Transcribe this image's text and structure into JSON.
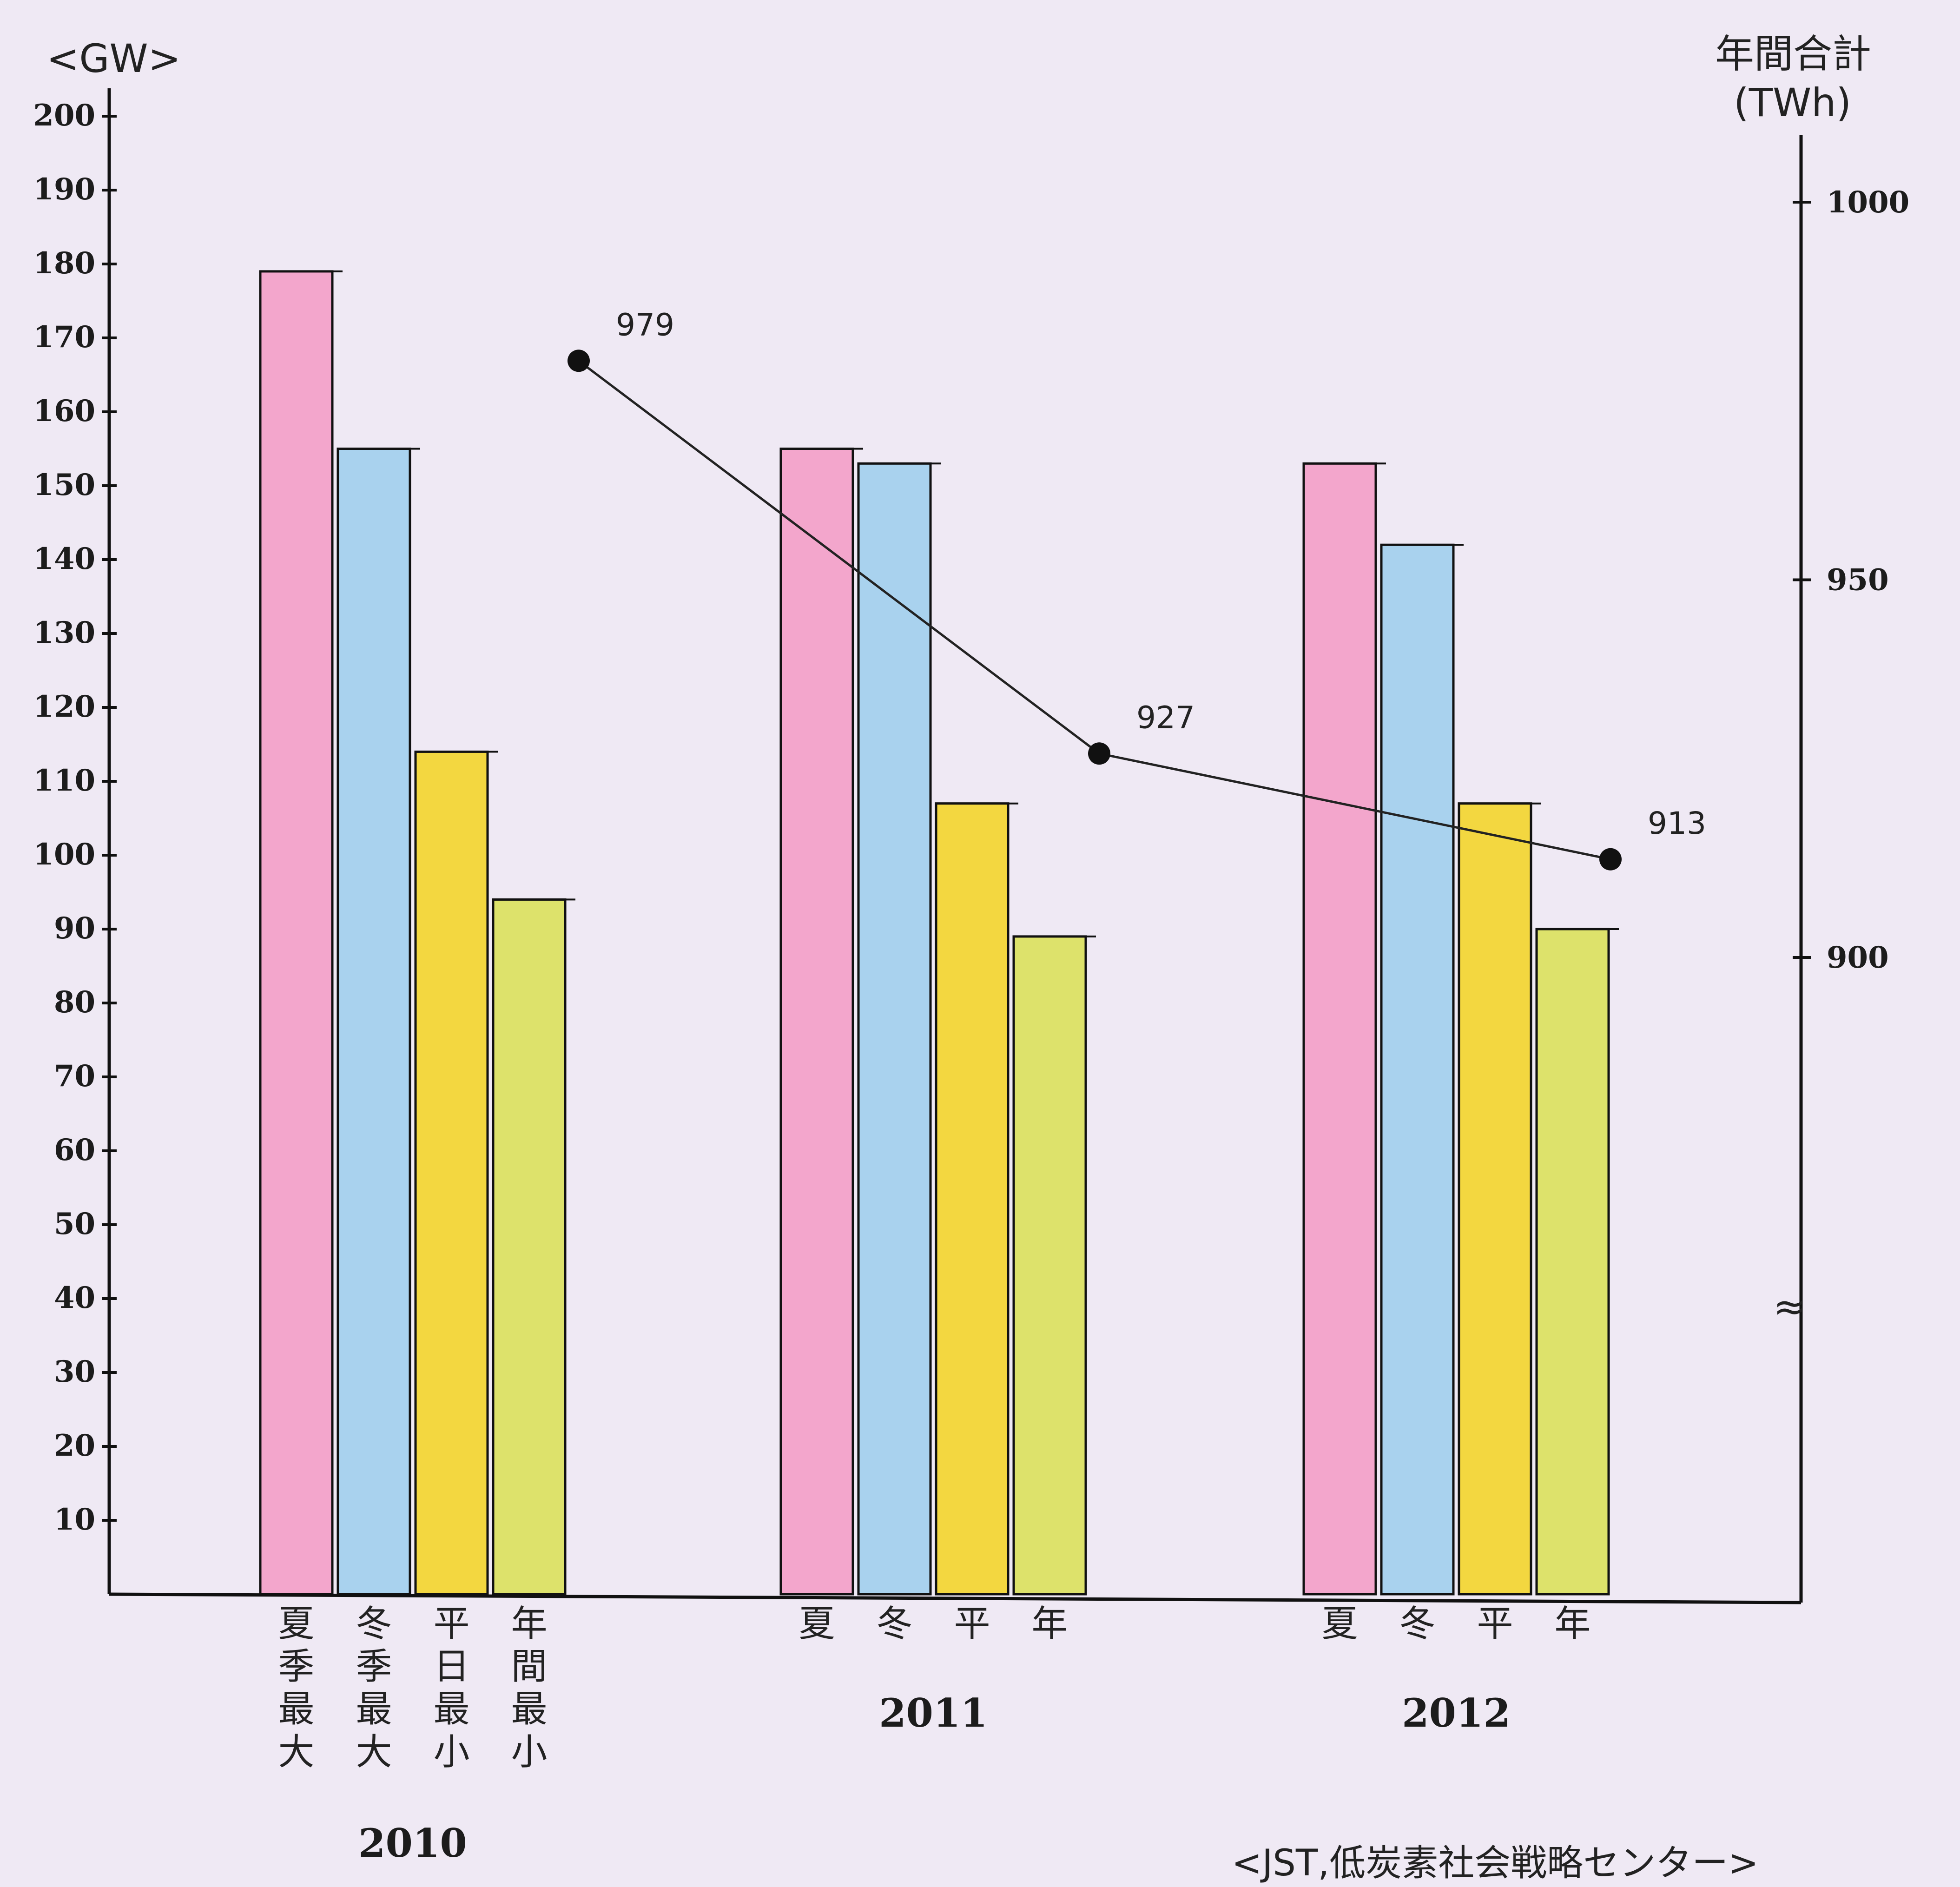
{
  "chart_data": {
    "type": "bar",
    "title": "",
    "y_left_unit": "<GW>",
    "y_right_unit_line1": "年間合計",
    "y_right_unit_line2": "(TWh)",
    "y_left_ticks": [
      10,
      20,
      30,
      40,
      50,
      60,
      70,
      80,
      90,
      100,
      110,
      120,
      130,
      140,
      150,
      160,
      170,
      180,
      190,
      200
    ],
    "y_right_ticks": [
      900,
      950,
      1000
    ],
    "y_right_break_symbol": "≈",
    "ylim_left": [
      0,
      200
    ],
    "ylim_right": [
      880,
      1000
    ],
    "groups": [
      {
        "year": "2010",
        "category_labels": [
          "夏季最大",
          "冬季最大",
          "平日最小",
          "年間最小"
        ]
      },
      {
        "year": "2011",
        "category_labels": [
          "夏",
          "冬",
          "平",
          "年"
        ]
      },
      {
        "year": "2012",
        "category_labels": [
          "夏",
          "冬",
          "平",
          "年"
        ]
      }
    ],
    "series": [
      {
        "key": "summer_max",
        "color": "#f3a6cc",
        "values": [
          179,
          155,
          153
        ]
      },
      {
        "key": "winter_max",
        "color": "#a9d2ee",
        "values": [
          155,
          153,
          142
        ]
      },
      {
        "key": "weekday_min",
        "color": "#f3d740",
        "values": [
          114,
          107,
          107
        ]
      },
      {
        "key": "annual_min",
        "color": "#dde26b",
        "values": [
          94,
          89,
          90
        ]
      }
    ],
    "line": {
      "axis": "right",
      "values": [
        979,
        927,
        913
      ],
      "labels": [
        "979",
        "927",
        "913"
      ]
    },
    "legend": "none",
    "grid": false
  },
  "source": "<JST,低炭素社会戦略センター>"
}
